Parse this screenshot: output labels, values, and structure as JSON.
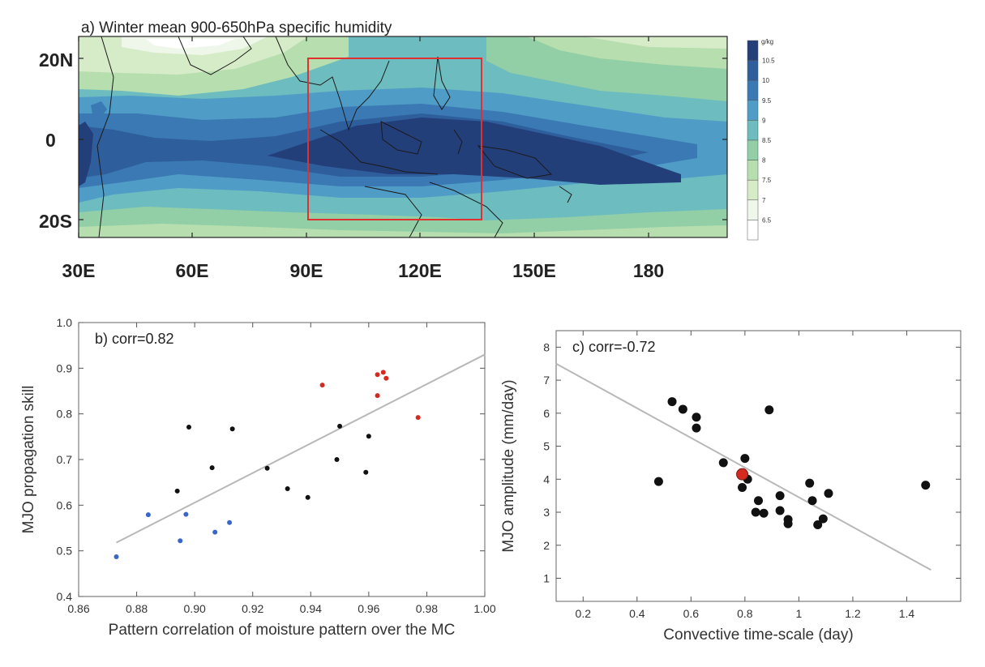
{
  "panel_a": {
    "title": "a) Winter mean 900-650hPa specific humidity",
    "colorbar_unit": "g/kg",
    "colorbar_levels": [
      "10.5",
      "10",
      "9.5",
      "9",
      "8.5",
      "8",
      "7.5",
      "7",
      "6.5"
    ],
    "colorbar_colors": [
      "#233f7a",
      "#2f5e9c",
      "#3a79b3",
      "#4f9cc6",
      "#6dbcbf",
      "#92cfa6",
      "#b7deae",
      "#d6ecc8",
      "#eef7ea",
      "#ffffff"
    ],
    "lat_ticks": [
      "20N",
      "0",
      "20S"
    ],
    "lon_ticks": [
      "30E",
      "60E",
      "90E",
      "120E",
      "150E",
      "180"
    ],
    "box_color": "#e03030"
  },
  "chart_data": [
    {
      "panel": "b",
      "type": "scatter",
      "annotation": "b) corr=0.82",
      "xlabel": "Pattern correlation of moisture pattern over the MC",
      "ylabel": "MJO propagation skill",
      "xlim": [
        0.86,
        1.0
      ],
      "ylim": [
        0.4,
        1.0
      ],
      "xticks": [
        "0.86",
        "0.88",
        "0.90",
        "0.92",
        "0.94",
        "0.96",
        "0.98",
        "1.00"
      ],
      "yticks": [
        "0.4",
        "0.5",
        "0.6",
        "0.7",
        "0.8",
        "0.9",
        "1.0"
      ],
      "fit_line": [
        [
          0.873,
          0.518
        ],
        [
          1.0,
          0.93
        ]
      ],
      "series": [
        {
          "color": "#3a66c8",
          "points": [
            [
              0.873,
              0.487
            ],
            [
              0.884,
              0.579
            ],
            [
              0.895,
              0.522
            ],
            [
              0.897,
              0.58
            ],
            [
              0.907,
              0.541
            ],
            [
              0.912,
              0.562
            ]
          ]
        },
        {
          "color": "#111111",
          "points": [
            [
              0.894,
              0.631
            ],
            [
              0.898,
              0.771
            ],
            [
              0.906,
              0.682
            ],
            [
              0.913,
              0.767
            ],
            [
              0.925,
              0.681
            ],
            [
              0.932,
              0.636
            ],
            [
              0.939,
              0.617
            ],
            [
              0.949,
              0.7
            ],
            [
              0.95,
              0.773
            ],
            [
              0.959,
              0.672
            ],
            [
              0.96,
              0.751
            ]
          ]
        },
        {
          "color": "#d42a20",
          "points": [
            [
              0.944,
              0.863
            ],
            [
              0.963,
              0.886
            ],
            [
              0.963,
              0.84
            ],
            [
              0.965,
              0.891
            ],
            [
              0.966,
              0.878
            ],
            [
              0.977,
              0.792
            ]
          ]
        }
      ]
    },
    {
      "panel": "c",
      "type": "scatter",
      "annotation": "c) corr=-0.72",
      "xlabel": "Convective time-scale (day)",
      "ylabel": "MJO amplitude (mm/day)",
      "xlim": [
        0.1,
        1.6
      ],
      "ylim": [
        0.3,
        8.5
      ],
      "xticks": [
        "0.2",
        "0.4",
        "0.6",
        "0.8",
        "1",
        "1.2",
        "1.4"
      ],
      "yticks": [
        "1",
        "2",
        "3",
        "4",
        "5",
        "6",
        "7",
        "8"
      ],
      "fit_line": [
        [
          0.1,
          7.5
        ],
        [
          1.49,
          1.25
        ]
      ],
      "series": [
        {
          "color": "#111111",
          "points": [
            [
              0.48,
              3.93
            ],
            [
              0.53,
              6.35
            ],
            [
              0.57,
              6.12
            ],
            [
              0.62,
              5.88
            ],
            [
              0.62,
              5.55
            ],
            [
              0.72,
              4.5
            ],
            [
              0.79,
              3.75
            ],
            [
              0.8,
              4.63
            ],
            [
              0.81,
              4.0
            ],
            [
              0.84,
              3.0
            ],
            [
              0.85,
              3.35
            ],
            [
              0.87,
              2.97
            ],
            [
              0.89,
              6.1
            ],
            [
              0.93,
              3.05
            ],
            [
              0.93,
              3.5
            ],
            [
              0.96,
              2.65
            ],
            [
              0.96,
              2.78
            ],
            [
              1.04,
              3.88
            ],
            [
              1.05,
              3.35
            ],
            [
              1.07,
              2.62
            ],
            [
              1.09,
              2.8
            ],
            [
              1.11,
              3.57
            ],
            [
              1.47,
              3.82
            ]
          ]
        },
        {
          "color": "#d42a20",
          "points": [
            [
              0.79,
              4.15
            ]
          ]
        }
      ]
    }
  ]
}
